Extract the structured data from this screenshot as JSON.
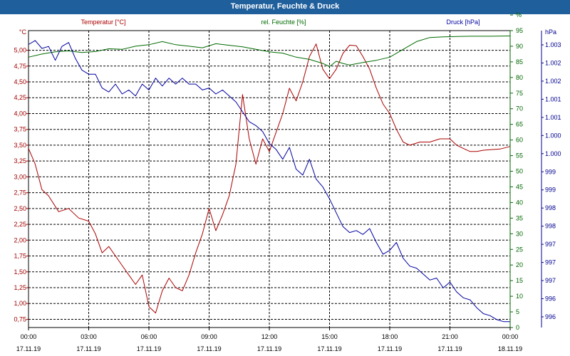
{
  "window": {
    "title": "Temperatur, Feuchte & Druck"
  },
  "chart_data": {
    "type": "line",
    "title": "Temperatur, Feuchte & Druck",
    "grid": true,
    "x_axis": {
      "range": [
        "17.11.19 00:00",
        "18.11.19 00:00"
      ],
      "ticks": [
        {
          "time": "00:00",
          "date": "17.11.19"
        },
        {
          "time": "03:00",
          "date": "17.11.19"
        },
        {
          "time": "06:00",
          "date": "17.11.19"
        },
        {
          "time": "09:00",
          "date": "17.11.19"
        },
        {
          "time": "12:00",
          "date": "17.11.19"
        },
        {
          "time": "15:00",
          "date": "17.11.19"
        },
        {
          "time": "18:00",
          "date": "17.11.19"
        },
        {
          "time": "21:00",
          "date": "17.11.19"
        },
        {
          "time": "00:00",
          "date": "18.11.19"
        }
      ]
    },
    "axes": {
      "temperature": {
        "unit": "°C",
        "range": [
          0.62,
          5.31
        ],
        "color": "#a00000",
        "ticks": [
          "0,75",
          "1,00",
          "1,25",
          "1,50",
          "1,75",
          "2,00",
          "2,25",
          "2,50",
          "2,75",
          "3,00",
          "3,25",
          "3,50",
          "3,75",
          "4,00",
          "4,25",
          "4,50",
          "4,75",
          "5,00"
        ]
      },
      "humidity": {
        "unit": "%",
        "range": [
          0,
          95
        ],
        "color": "#006600",
        "ticks": [
          "0",
          "5",
          "10",
          "15",
          "20",
          "25",
          "30",
          "35",
          "40",
          "45",
          "50",
          "55",
          "60",
          "65",
          "70",
          "75",
          "80",
          "85",
          "90",
          "95",
          "%"
        ]
      },
      "pressure": {
        "unit": "hPa",
        "range": [
          995.8,
          1003.3
        ],
        "color": "#000090",
        "ticks": [
          "996",
          "996",
          "997",
          "997",
          "997",
          "998",
          "998",
          "999",
          "999",
          "1.000",
          "1.000",
          "1.001",
          "1.001",
          "1.002",
          "1.002",
          "1.003"
        ]
      }
    },
    "series": [
      {
        "name": "Temperatur [°C]",
        "axis": "temperature",
        "color": "#aa0000",
        "x": [
          "00:00",
          "00:20",
          "00:40",
          "01:00",
          "01:30",
          "02:00",
          "02:30",
          "03:00",
          "03:20",
          "03:40",
          "04:00",
          "04:20",
          "04:40",
          "05:00",
          "05:20",
          "05:40",
          "06:00",
          "06:20",
          "06:40",
          "07:00",
          "07:20",
          "07:40",
          "08:00",
          "08:20",
          "08:40",
          "09:00",
          "09:20",
          "09:40",
          "10:00",
          "10:20",
          "10:40",
          "11:00",
          "11:20",
          "11:40",
          "12:00",
          "12:20",
          "12:40",
          "13:00",
          "13:20",
          "13:40",
          "14:00",
          "14:20",
          "14:40",
          "15:00",
          "15:20",
          "15:40",
          "16:00",
          "16:20",
          "16:40",
          "17:00",
          "17:20",
          "17:40",
          "18:00",
          "18:20",
          "18:40",
          "19:00",
          "19:30",
          "20:00",
          "20:30",
          "21:00",
          "21:20",
          "21:40",
          "22:00",
          "22:20",
          "22:40",
          "23:00",
          "23:30",
          "24:00"
        ],
        "y": [
          3.45,
          3.2,
          2.8,
          2.7,
          2.45,
          2.5,
          2.35,
          2.3,
          2.1,
          1.8,
          1.9,
          1.75,
          1.6,
          1.45,
          1.3,
          1.45,
          0.95,
          0.85,
          1.2,
          1.4,
          1.25,
          1.2,
          1.45,
          1.8,
          2.1,
          2.5,
          2.15,
          2.4,
          2.7,
          3.2,
          4.3,
          3.6,
          3.2,
          3.6,
          3.4,
          3.7,
          4.0,
          4.4,
          4.2,
          4.5,
          4.9,
          5.1,
          4.7,
          4.55,
          4.7,
          4.95,
          5.08,
          5.07,
          4.9,
          4.7,
          4.4,
          4.15,
          4.0,
          3.75,
          3.55,
          3.5,
          3.55,
          3.55,
          3.6,
          3.6,
          3.5,
          3.45,
          3.4,
          3.4,
          3.42,
          3.43,
          3.44,
          3.48
        ]
      },
      {
        "name": "rel. Feuchte [%]",
        "axis": "humidity",
        "color": "#006a00",
        "x": [
          "00:00",
          "00:40",
          "01:20",
          "02:00",
          "02:40",
          "03:20",
          "04:00",
          "04:40",
          "05:20",
          "06:00",
          "06:40",
          "07:20",
          "08:00",
          "08:40",
          "09:20",
          "10:00",
          "10:40",
          "11:20",
          "12:00",
          "12:40",
          "13:20",
          "14:00",
          "14:40",
          "15:00",
          "15:20",
          "15:40",
          "16:00",
          "16:40",
          "17:20",
          "18:00",
          "18:40",
          "19:20",
          "20:00",
          "20:40",
          "21:20",
          "22:00",
          "23:00",
          "24:00"
        ],
        "y": [
          86.5,
          87.5,
          88.2,
          88.5,
          88.0,
          88.3,
          89.2,
          89.0,
          90.0,
          90.5,
          91.5,
          90.5,
          90.0,
          89.5,
          90.8,
          90.3,
          89.8,
          89.0,
          88.2,
          87.8,
          86.5,
          85.8,
          84.5,
          83.5,
          85.2,
          84.5,
          84.0,
          84.8,
          85.5,
          86.5,
          89.0,
          91.5,
          92.8,
          93.0,
          93.1,
          93.2,
          93.2,
          93.3
        ]
      },
      {
        "name": "Druck [hPa]",
        "axis": "pressure",
        "color": "#0000a0",
        "x": [
          "00:00",
          "00:20",
          "00:40",
          "01:00",
          "01:20",
          "01:40",
          "02:00",
          "02:20",
          "02:40",
          "03:00",
          "03:20",
          "03:40",
          "04:00",
          "04:20",
          "04:40",
          "05:00",
          "05:20",
          "05:40",
          "06:00",
          "06:20",
          "06:40",
          "07:00",
          "07:20",
          "07:40",
          "08:00",
          "08:20",
          "08:40",
          "09:00",
          "09:20",
          "09:40",
          "10:00",
          "10:20",
          "10:40",
          "11:00",
          "11:20",
          "11:40",
          "12:00",
          "12:20",
          "12:40",
          "13:00",
          "13:20",
          "13:40",
          "14:00",
          "14:20",
          "14:40",
          "15:00",
          "15:20",
          "15:40",
          "16:00",
          "16:20",
          "16:40",
          "17:00",
          "17:20",
          "17:40",
          "18:00",
          "18:20",
          "18:40",
          "19:00",
          "19:20",
          "19:40",
          "20:00",
          "20:20",
          "20:40",
          "21:00",
          "21:20",
          "21:40",
          "22:00",
          "22:20",
          "22:40",
          "23:00",
          "23:20",
          "23:40",
          "24:00"
        ],
        "y": [
          1002.95,
          1003.05,
          1002.85,
          1002.9,
          1002.55,
          1002.9,
          1003.0,
          1002.6,
          1002.3,
          1002.2,
          1002.2,
          1001.85,
          1001.75,
          1001.95,
          1001.7,
          1001.8,
          1001.65,
          1001.95,
          1001.8,
          1002.1,
          1001.9,
          1002.1,
          1001.95,
          1002.1,
          1001.95,
          1001.95,
          1001.8,
          1001.85,
          1001.7,
          1001.8,
          1001.65,
          1001.5,
          1001.25,
          1001.0,
          1000.9,
          1000.75,
          1000.45,
          1000.3,
          1000.05,
          1000.35,
          999.8,
          999.65,
          1000.05,
          999.55,
          999.35,
          999.05,
          998.7,
          998.35,
          998.2,
          998.25,
          998.15,
          998.3,
          997.95,
          997.65,
          997.75,
          997.95,
          997.55,
          997.35,
          997.3,
          997.15,
          997.0,
          997.05,
          996.8,
          996.95,
          996.7,
          996.55,
          996.5,
          996.3,
          996.15,
          996.1,
          996.0,
          995.95,
          995.95
        ]
      }
    ]
  }
}
